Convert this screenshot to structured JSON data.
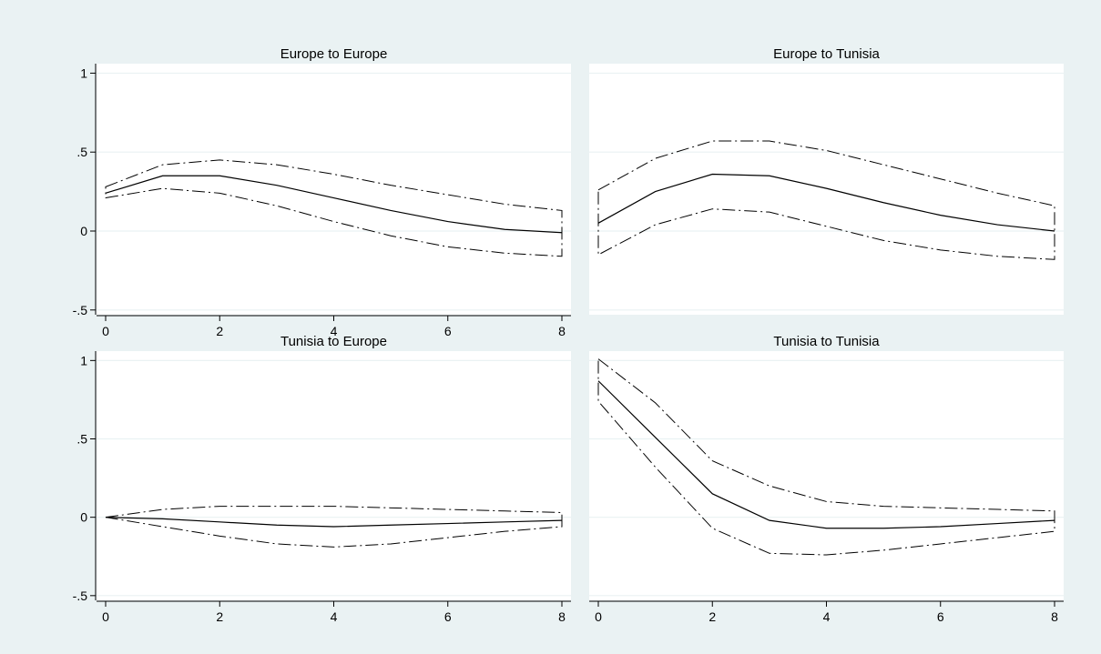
{
  "figure": {
    "background": "#eaf2f3",
    "plot_background": "#ffffff",
    "grid_color": "#eaf2f3",
    "line_color": "#000000"
  },
  "chart_data": [
    {
      "type": "line",
      "title": "Europe to Europe",
      "x": [
        0,
        1,
        2,
        3,
        4,
        5,
        6,
        7,
        8
      ],
      "xlim": [
        0,
        8
      ],
      "ylim": [
        -0.5,
        1
      ],
      "xticks": [
        "0",
        "2",
        "4",
        "6",
        "8"
      ],
      "yticks": [
        "-.5",
        "0",
        ".5",
        "1"
      ],
      "grid": true,
      "band": {
        "upper": [
          0.28,
          0.42,
          0.45,
          0.42,
          0.36,
          0.29,
          0.23,
          0.17,
          0.13
        ],
        "lower": [
          0.21,
          0.27,
          0.24,
          0.16,
          0.06,
          -0.03,
          -0.1,
          -0.14,
          -0.16
        ]
      },
      "series": [
        {
          "values": [
            0.24,
            0.35,
            0.35,
            0.29,
            0.21,
            0.13,
            0.06,
            0.01,
            -0.01
          ]
        }
      ]
    },
    {
      "type": "line",
      "title": "Europe to Tunisia",
      "x": [
        0,
        1,
        2,
        3,
        4,
        5,
        6,
        7,
        8
      ],
      "xlim": [
        0,
        8
      ],
      "ylim": [
        -0.5,
        1
      ],
      "xticks": [],
      "yticks": [],
      "grid": true,
      "band": {
        "upper": [
          0.26,
          0.46,
          0.57,
          0.57,
          0.51,
          0.42,
          0.33,
          0.24,
          0.16
        ],
        "lower": [
          -0.15,
          0.04,
          0.14,
          0.12,
          0.03,
          -0.06,
          -0.12,
          -0.16,
          -0.18
        ]
      },
      "series": [
        {
          "values": [
            0.05,
            0.25,
            0.36,
            0.35,
            0.27,
            0.18,
            0.1,
            0.04,
            0.0
          ]
        }
      ]
    },
    {
      "type": "line",
      "title": "Tunisia to Europe",
      "x": [
        0,
        1,
        2,
        3,
        4,
        5,
        6,
        7,
        8
      ],
      "xlim": [
        0,
        8
      ],
      "ylim": [
        -0.5,
        1
      ],
      "xticks": [
        "0",
        "2",
        "4",
        "6",
        "8"
      ],
      "yticks": [
        "-.5",
        "0",
        ".5",
        "1"
      ],
      "grid": true,
      "band": {
        "upper": [
          0.0,
          0.05,
          0.07,
          0.07,
          0.07,
          0.06,
          0.05,
          0.04,
          0.03
        ],
        "lower": [
          0.0,
          -0.06,
          -0.12,
          -0.17,
          -0.19,
          -0.17,
          -0.13,
          -0.09,
          -0.06
        ]
      },
      "series": [
        {
          "values": [
            0.0,
            -0.01,
            -0.03,
            -0.05,
            -0.06,
            -0.05,
            -0.04,
            -0.03,
            -0.02
          ]
        }
      ]
    },
    {
      "type": "line",
      "title": "Tunisia to Tunisia",
      "x": [
        0,
        1,
        2,
        3,
        4,
        5,
        6,
        7,
        8
      ],
      "xlim": [
        0,
        8
      ],
      "ylim": [
        -0.5,
        1
      ],
      "xticks": [
        "0",
        "2",
        "4",
        "6",
        "8"
      ],
      "yticks": [],
      "grid": true,
      "band": {
        "upper": [
          1.01,
          0.73,
          0.36,
          0.2,
          0.1,
          0.07,
          0.06,
          0.05,
          0.04
        ],
        "lower": [
          0.74,
          0.32,
          -0.07,
          -0.23,
          -0.24,
          -0.21,
          -0.17,
          -0.13,
          -0.09
        ]
      },
      "series": [
        {
          "values": [
            0.87,
            0.51,
            0.15,
            -0.02,
            -0.07,
            -0.07,
            -0.06,
            -0.04,
            -0.02
          ]
        }
      ]
    }
  ]
}
